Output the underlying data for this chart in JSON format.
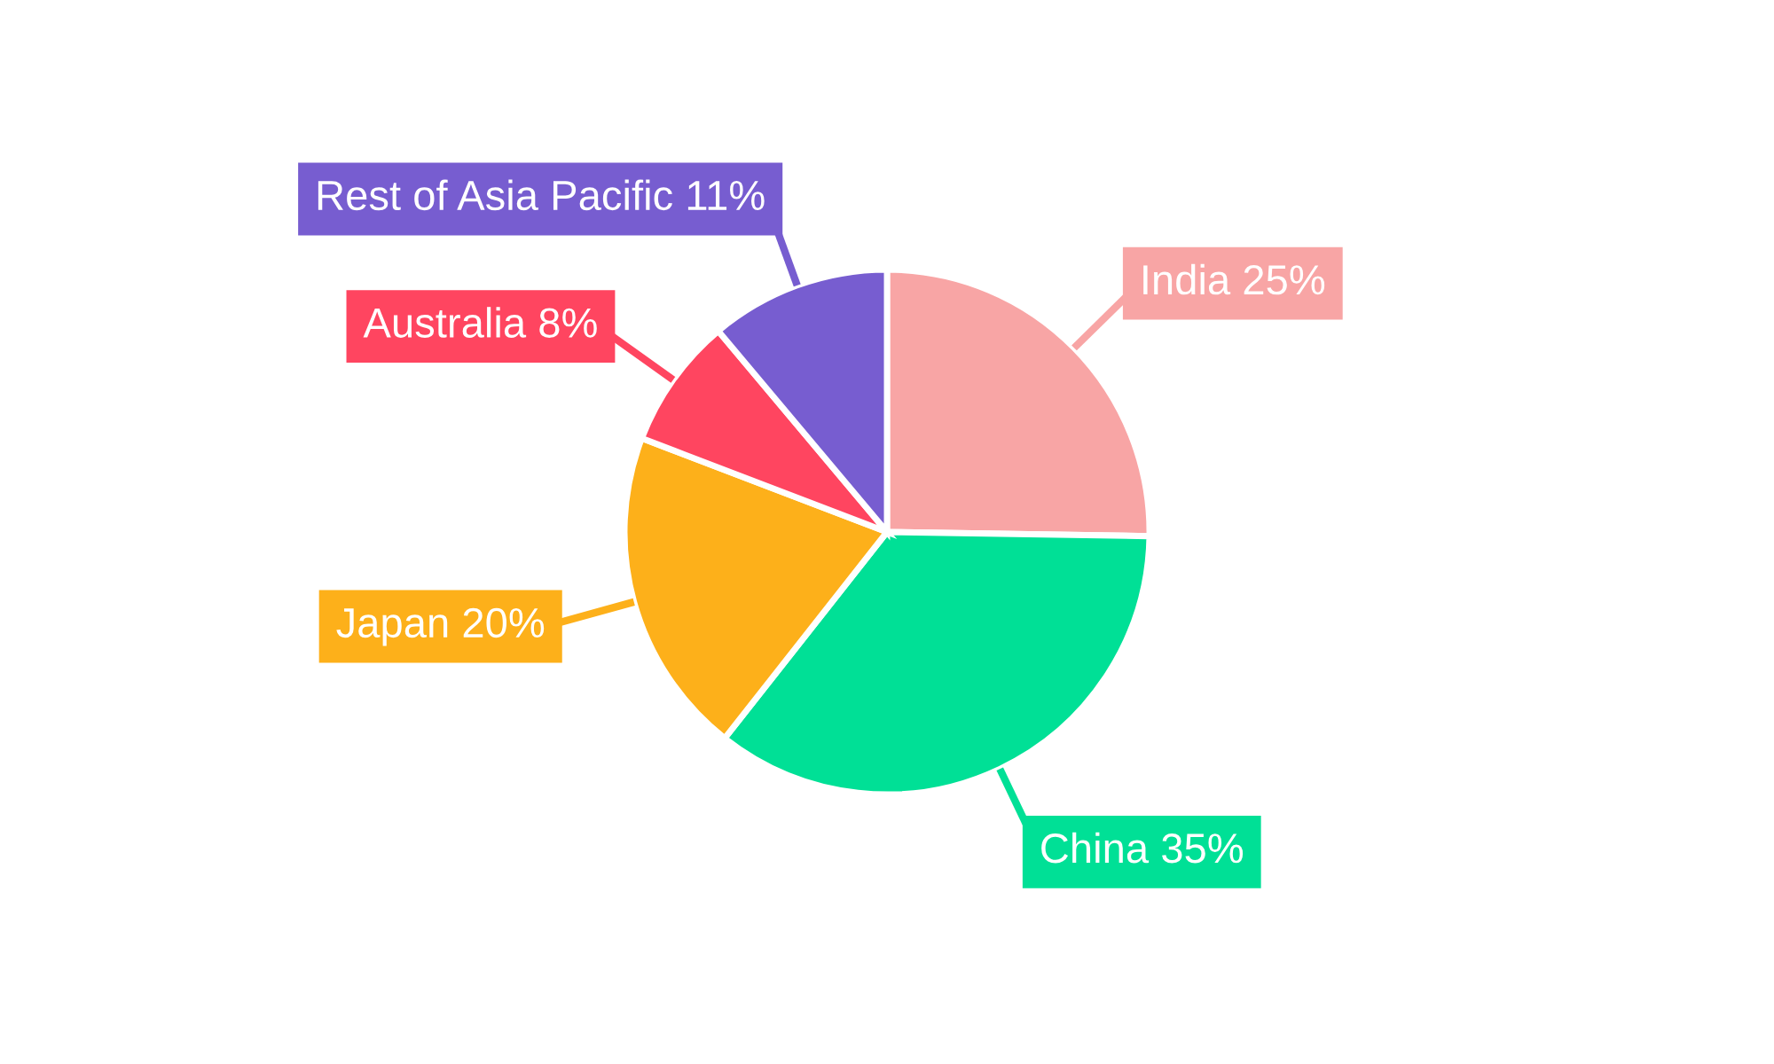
{
  "chart_data": {
    "type": "pie",
    "categories": [
      "India",
      "China",
      "Japan",
      "Australia",
      "Rest of Asia Pacific"
    ],
    "values": [
      25,
      35,
      20,
      8,
      11
    ],
    "colors": [
      "#f8a5a5",
      "#00e096",
      "#fdb01a",
      "#ff4560",
      "#775dd0"
    ],
    "value_labels": [
      "25%",
      "35%",
      "20%",
      "8%",
      "11%"
    ],
    "legend": false
  }
}
